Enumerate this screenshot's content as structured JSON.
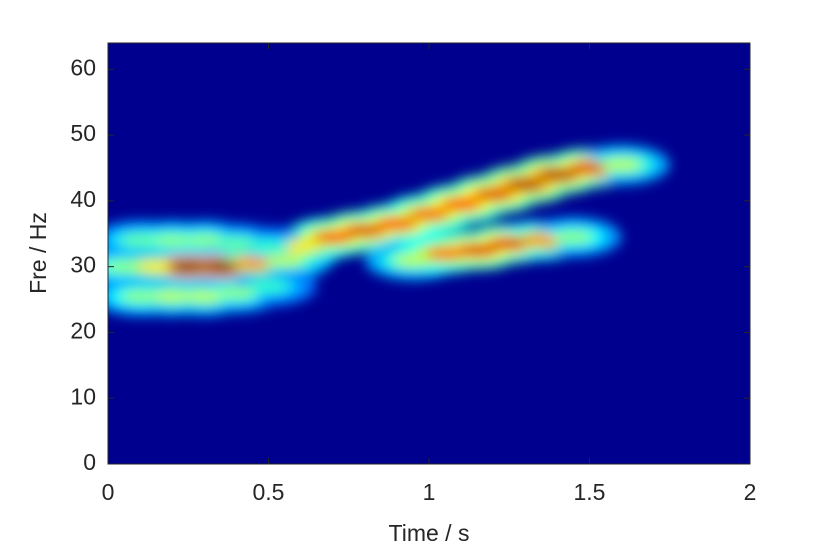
{
  "chart_data": {
    "type": "spectrogram",
    "x_label": "Time / s",
    "y_label": "Fre / Hz",
    "xlim": [
      0,
      2
    ],
    "ylim": [
      0,
      64
    ],
    "xticks": [
      0,
      0.5,
      1,
      1.5,
      2
    ],
    "yticks": [
      0,
      10,
      20,
      30,
      40,
      50,
      60
    ],
    "background": "#00008f",
    "colormap": "jet",
    "components": [
      {
        "x": [
          0.05,
          0.15,
          0.25,
          0.35,
          0.45,
          0.55
        ],
        "y": [
          30,
          30,
          30,
          30,
          30.5,
          31
        ],
        "values": [
          0.45,
          0.6,
          1,
          1,
          0.7,
          0.5
        ]
      },
      {
        "x": [
          0.6,
          0.7,
          0.8,
          0.9,
          1.0,
          1.1,
          1.2,
          1.3,
          1.4,
          1.5,
          1.6
        ],
        "y": [
          33,
          34.5,
          35.5,
          36.5,
          38,
          39.5,
          41,
          42.5,
          44,
          45,
          45.5
        ],
        "values": [
          0.6,
          0.8,
          0.9,
          0.85,
          0.8,
          0.85,
          0.9,
          0.95,
          0.95,
          0.9,
          0.5
        ]
      },
      {
        "x": [
          0.95,
          1.05,
          1.15,
          1.25,
          1.35,
          1.45
        ],
        "y": [
          31,
          32,
          32.5,
          33.5,
          34,
          34.5
        ],
        "values": [
          0.5,
          0.75,
          0.9,
          0.9,
          0.7,
          0.45
        ]
      },
      {
        "x": [
          0.1,
          0.2,
          0.3,
          0.4,
          0.5
        ],
        "y": [
          25.5,
          25.5,
          25.5,
          26,
          27
        ],
        "values": [
          0.45,
          0.5,
          0.5,
          0.45,
          0.35
        ]
      },
      {
        "x": [
          0.1,
          0.2,
          0.3,
          0.4,
          0.5
        ],
        "y": [
          34,
          34,
          34,
          33.5,
          33
        ],
        "values": [
          0.4,
          0.45,
          0.45,
          0.4,
          0.35
        ]
      }
    ]
  }
}
